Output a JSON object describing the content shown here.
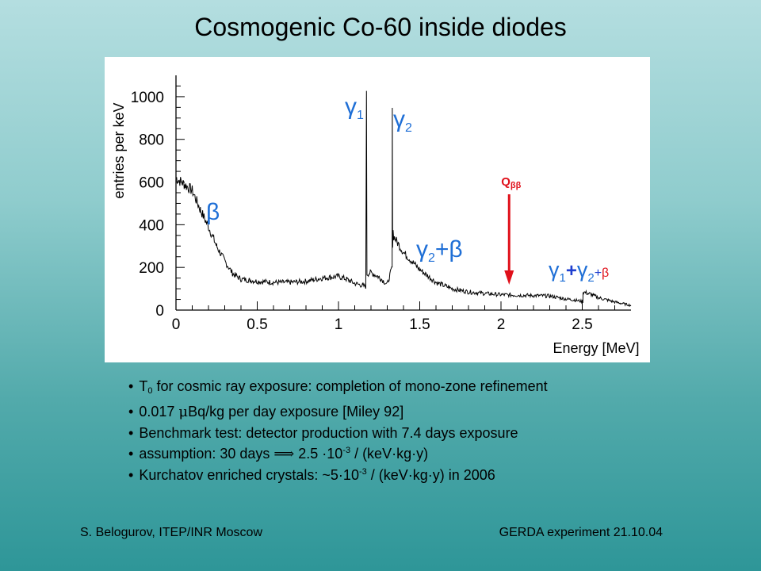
{
  "slide": {
    "title": "Cosmogenic Co-60 inside diodes"
  },
  "chart_data": {
    "type": "line",
    "xlabel": "Energy [MeV]",
    "ylabel": "entries per keV",
    "xlim": [
      0,
      2.8
    ],
    "ylim": [
      0,
      1100
    ],
    "x_ticks": [
      0,
      0.5,
      1,
      1.5,
      2,
      2.5
    ],
    "x_tick_labels": [
      "0",
      "0.5",
      "1",
      "1.5",
      "2",
      "2.5"
    ],
    "y_ticks": [
      0,
      200,
      400,
      600,
      800,
      1000
    ],
    "y_tick_labels": [
      "0",
      "200",
      "400",
      "600",
      "800",
      "1000"
    ],
    "series": [
      {
        "x": [
          0.0,
          0.05,
          0.1,
          0.15,
          0.2,
          0.25,
          0.3,
          0.35,
          0.4,
          0.45,
          0.5,
          0.6,
          0.7,
          0.8,
          0.9,
          1.0,
          1.05,
          1.1,
          1.15,
          1.168,
          1.172,
          1.175,
          1.2,
          1.25,
          1.3,
          1.33,
          1.331,
          1.333,
          1.336,
          1.34,
          1.4,
          1.5,
          1.6,
          1.7,
          1.8,
          1.9,
          2.0,
          2.1,
          2.2,
          2.3,
          2.4,
          2.45,
          2.5,
          2.504,
          2.505,
          2.55,
          2.6,
          2.7,
          2.8
        ],
        "y": [
          620,
          590,
          560,
          470,
          390,
          300,
          230,
          170,
          145,
          140,
          135,
          130,
          130,
          135,
          150,
          158,
          145,
          125,
          115,
          110,
          1000,
          170,
          175,
          155,
          120,
          200,
          920,
          300,
          370,
          345,
          270,
          190,
          130,
          100,
          85,
          78,
          72,
          70,
          68,
          66,
          52,
          48,
          40,
          40,
          85,
          75,
          58,
          38,
          22
        ]
      }
    ],
    "annotations": [
      {
        "label": "β",
        "color": "#1f6fd6"
      },
      {
        "label": "γ",
        "sub": "1",
        "color": "#1f6fd6"
      },
      {
        "label": "γ",
        "sub": "2",
        "color": "#1f6fd6"
      },
      {
        "label": "γ",
        "sub": "2",
        "rest": "+β",
        "color": "#1f6fd6"
      },
      {
        "label": "γ",
        "sub1": "1",
        "plus1": "+",
        "label2": "γ",
        "sub2": "2",
        "plus2": "+",
        "beta": "β",
        "color": "#1f6fd6",
        "plus_color": "#1f3fd0",
        "beta_color": "#e0101a"
      },
      {
        "label": "Q",
        "sub": "ββ",
        "x": 2.05,
        "color": "#e0101a"
      }
    ]
  },
  "bullets": [
    {
      "pre": "T",
      "sub": "0",
      "post": " for cosmic ray exposure: completion of mono-zone refinement"
    },
    {
      "pre": "0.017 ",
      "mu": "μ",
      "post": "Bq/kg per day exposure [Miley 92]"
    },
    {
      "pre": "Benchmark test: detector production with 7.4 days exposure"
    },
    {
      "pre": "assumption: 30 days ",
      "arrow": "⟹",
      "mid": " 2.5 ·10",
      "sup": "-3",
      "post": " / (keV·kg·y)"
    },
    {
      "pre": "Kurchatov enriched crystals: ~5·10",
      "sup": "-3",
      "post": " / (keV·kg·y)  in 2006"
    }
  ],
  "footer": {
    "left": "S. Belogurov, ITEP/INR Moscow",
    "right": "GERDA experiment 21.10.04"
  }
}
